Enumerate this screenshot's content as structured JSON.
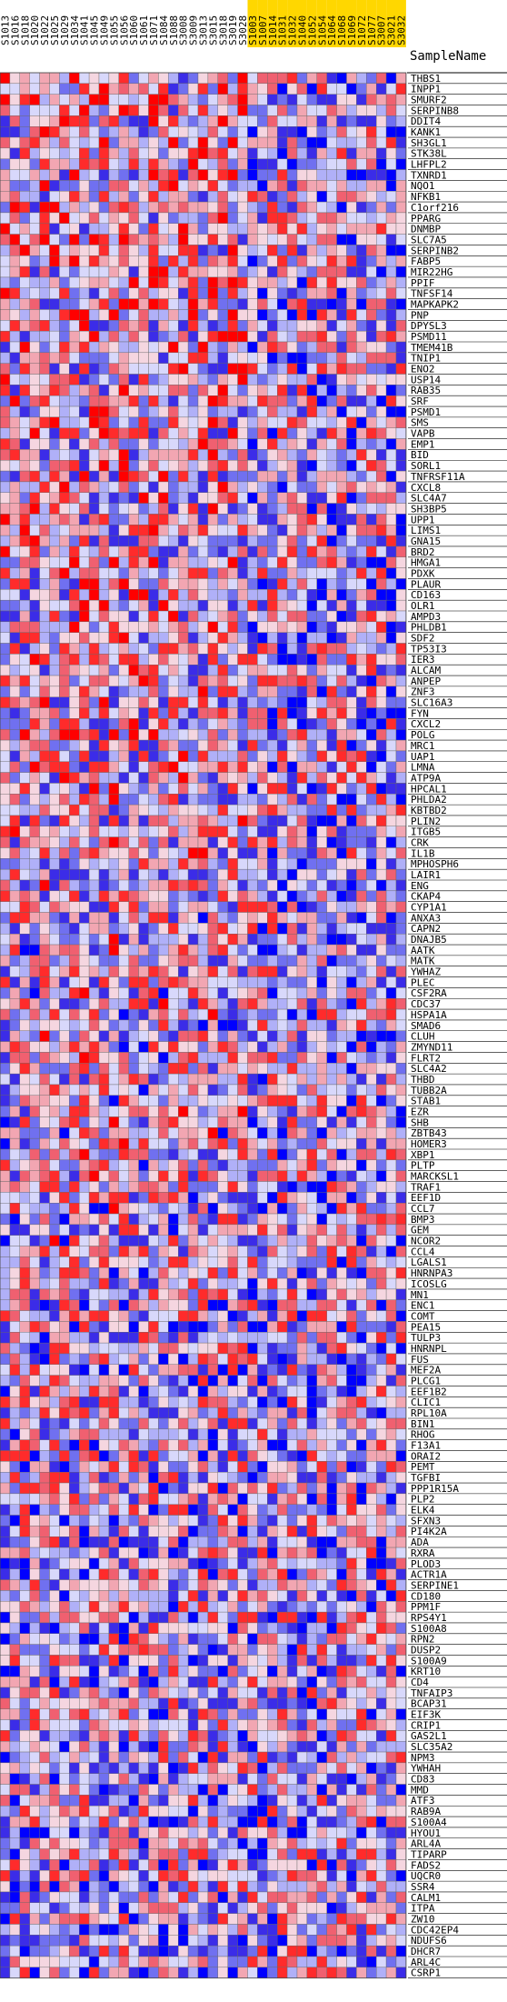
{
  "header_label": "SampleName",
  "chart_data": {
    "type": "heatmap",
    "samples": [
      "S1013",
      "S1016",
      "S1018",
      "S1020",
      "S1022",
      "S1025",
      "S1029",
      "S1034",
      "S1041",
      "S1045",
      "S1049",
      "S1055",
      "S1056",
      "S1060",
      "S1061",
      "S1071",
      "S1084",
      "S1088",
      "S3008",
      "S3009",
      "S3013",
      "S3015",
      "S3018",
      "S3019",
      "S3028",
      "S1003",
      "S1007",
      "S1014",
      "S1031",
      "S1032",
      "S1040",
      "S1052",
      "S1054",
      "S1064",
      "S1068",
      "S1069",
      "S1072",
      "S1077",
      "S3007",
      "S3021",
      "S3032"
    ],
    "groups": [
      {
        "color": "#ffffff",
        "count": 25
      },
      {
        "color": "#ffd700",
        "count": 16
      }
    ],
    "genes": [
      "THBS1",
      "INPP1",
      "SMURF2",
      "SERPINB8",
      "DDIT4",
      "KANK1",
      "SH3GL1",
      "STK38L",
      "LHFPL2",
      "TXNRD1",
      "NQO1",
      "NFKB1",
      "C1orf216",
      "PPARG",
      "DNMBP",
      "SLC7A5",
      "SERPINB2",
      "FABP5",
      "MIR22HG",
      "PPIF",
      "TNFSF14",
      "MAPKAPK2",
      "PNP",
      "DPYSL3",
      "PSMD11",
      "TMEM41B",
      "TNIP1",
      "ENO2",
      "USP14",
      "RAB35",
      "SRF",
      "PSMD1",
      "SMS",
      "VAPB",
      "EMP1",
      "BID",
      "SORL1",
      "TNFRSF11A",
      "CXCL8",
      "SLC4A7",
      "SH3BP5",
      "UPP1",
      "LIMS1",
      "GNA15",
      "BRD2",
      "HMGA1",
      "PDXK",
      "PLAUR",
      "CD163",
      "OLR1",
      "AMPD3",
      "PHLDB1",
      "SDF2",
      "TP53I3",
      "IER3",
      "ALCAM",
      "ANPEP",
      "ZNF3",
      "SLC16A3",
      "FYN",
      "CXCL2",
      "POLG",
      "MRC1",
      "UAP1",
      "LMNA",
      "ATP9A",
      "HPCAL1",
      "PHLDA2",
      "KBTBD2",
      "PLIN2",
      "ITGB5",
      "CRK",
      "IL1B",
      "MPHOSPH6",
      "LAIR1",
      "ENG",
      "CKAP4",
      "CYP1A1",
      "ANXA3",
      "CAPN2",
      "DNAJB5",
      "AATK",
      "MATK",
      "YWHAZ",
      "PLEC",
      "CSF2RA",
      "CDC37",
      "HSPA1A",
      "SMAD6",
      "CLUH",
      "ZMYND11",
      "FLRT2",
      "SLC4A2",
      "THBD",
      "TUBB2A",
      "STAB1",
      "EZR",
      "SHB",
      "ZBTB43",
      "HOMER3",
      "XBP1",
      "PLTP",
      "MARCKSL1",
      "TRAF1",
      "EEF1D",
      "CCL7",
      "BMP3",
      "GEM",
      "NCOR2",
      "CCL4",
      "LGALS1",
      "HNRNPA3",
      "ICOSLG",
      "MN1",
      "ENC1",
      "COMT",
      "PEA15",
      "TULP3",
      "HNRNPL",
      "FUS",
      "MEF2A",
      "PLCG1",
      "EEF1B2",
      "CLIC1",
      "RPL10A",
      "BIN1",
      "RHOG",
      "F13A1",
      "ORAI2",
      "PEMT",
      "TGFBI",
      "PPP1R15A",
      "PLP2",
      "ELK4",
      "SFXN3",
      "PI4K2A",
      "ADA",
      "RXRA",
      "PLOD3",
      "ACTR1A",
      "SERPINE1",
      "CD180",
      "PPM1F",
      "RPS4Y1",
      "S100A8",
      "RPN2",
      "DUSP2",
      "S100A9",
      "KRT10",
      "CD4",
      "TNFAIP3",
      "BCAP31",
      "EIF3K",
      "CRIP1",
      "GAS2L1",
      "SLC35A2",
      "NPM3",
      "YWHAH",
      "CD83",
      "MMD",
      "ATF3",
      "RAB9A",
      "S100A4",
      "HYOU1",
      "ARL4A",
      "TIPARP",
      "FADS2",
      "UQCR0",
      "SSR4",
      "CALM1",
      "ITPA",
      "ZW10",
      "CDC42EP4",
      "NDUFS6",
      "DHCR7",
      "ARL4C",
      "CSRP1"
    ],
    "color_scale": [
      "#0000ff",
      "#ffffff",
      "#ff0000"
    ],
    "value_range": [
      -1,
      1
    ],
    "values": "derived-pseudorandom"
  }
}
